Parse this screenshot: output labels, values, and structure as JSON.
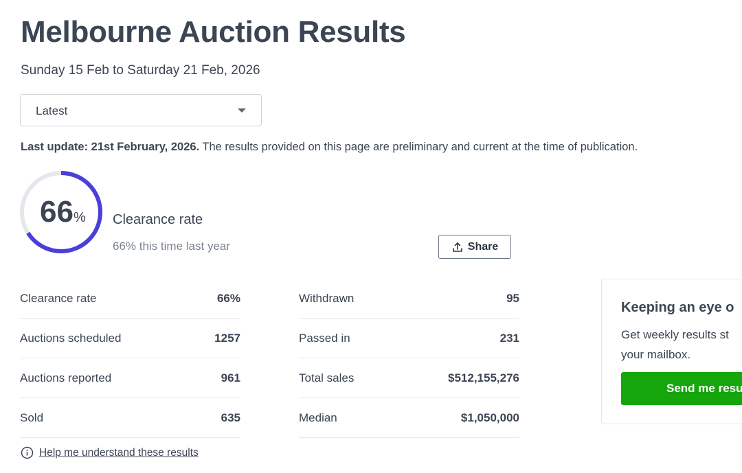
{
  "title": "Melbourne Auction Results",
  "date_range": "Sunday 15 Feb to Saturday 21 Feb, 2026",
  "period_select": {
    "value": "Latest"
  },
  "update": {
    "label": "Last update: 21st February, 2026.",
    "text": " The results provided on this page are preliminary and current at the time of publication."
  },
  "summary": {
    "value": "66",
    "unit": "%",
    "fraction": 0.66,
    "label": "Clearance rate",
    "last_year": "66% this time last year"
  },
  "share_label": "Share",
  "stats_left": [
    {
      "label": "Clearance rate",
      "value": "66%"
    },
    {
      "label": "Auctions scheduled",
      "value": "1257"
    },
    {
      "label": "Auctions reported",
      "value": "961"
    },
    {
      "label": "Sold",
      "value": "635"
    }
  ],
  "stats_right": [
    {
      "label": "Withdrawn",
      "value": "95"
    },
    {
      "label": "Passed in",
      "value": "231"
    },
    {
      "label": "Total sales",
      "value": "$512,155,276"
    },
    {
      "label": "Median",
      "value": "$1,050,000"
    }
  ],
  "help_link": "Help me understand these results",
  "card": {
    "title": "Keeping an eye o",
    "line1": "Get weekly results st",
    "line2": "your mailbox.",
    "button": "Send me resu"
  },
  "colors": {
    "ring": "#4a3fd8",
    "track": "#e4e7eb",
    "button": "#15a60b"
  }
}
